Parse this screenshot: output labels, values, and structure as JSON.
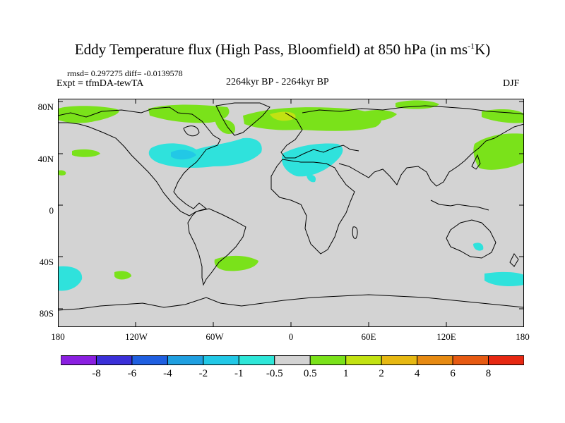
{
  "title": {
    "main": "Eddy Temperature flux (High Pass, Bloomfield) at 850 hPa (in ms",
    "sup": "-1",
    "tail": "K)"
  },
  "stats_line": "rmsd= 0.297275  diff= -0.0139578",
  "experiment": "Expt = tfmDA-tewTA",
  "center_label": "2264kyr BP - 2264kyr BP",
  "season": "DJF",
  "lat_labels": [
    "80N",
    "40N",
    "0",
    "40S",
    "80S"
  ],
  "lon_labels": [
    "180",
    "120W",
    "60W",
    "0",
    "60E",
    "120E",
    "180"
  ],
  "colorbar": {
    "labels": [
      "-8",
      "-6",
      "-4",
      "-2",
      "-1",
      "-0.5",
      "0.5",
      "1",
      "2",
      "4",
      "6",
      "8"
    ],
    "colors": [
      "#8a1fe0",
      "#3a2fd8",
      "#1f5fe0",
      "#1f9fe0",
      "#22c8e6",
      "#2ee6d8",
      "#d3d3d3",
      "#7ae21a",
      "#c2e212",
      "#e6b812",
      "#e68a12",
      "#e65a12",
      "#e62812"
    ]
  },
  "colors": {
    "background": "#d3d3d3",
    "cyan": "#2fe2dc",
    "cyan_light": "#22c8e6",
    "green": "#7ae21a",
    "yellow": "#c2e212"
  }
}
